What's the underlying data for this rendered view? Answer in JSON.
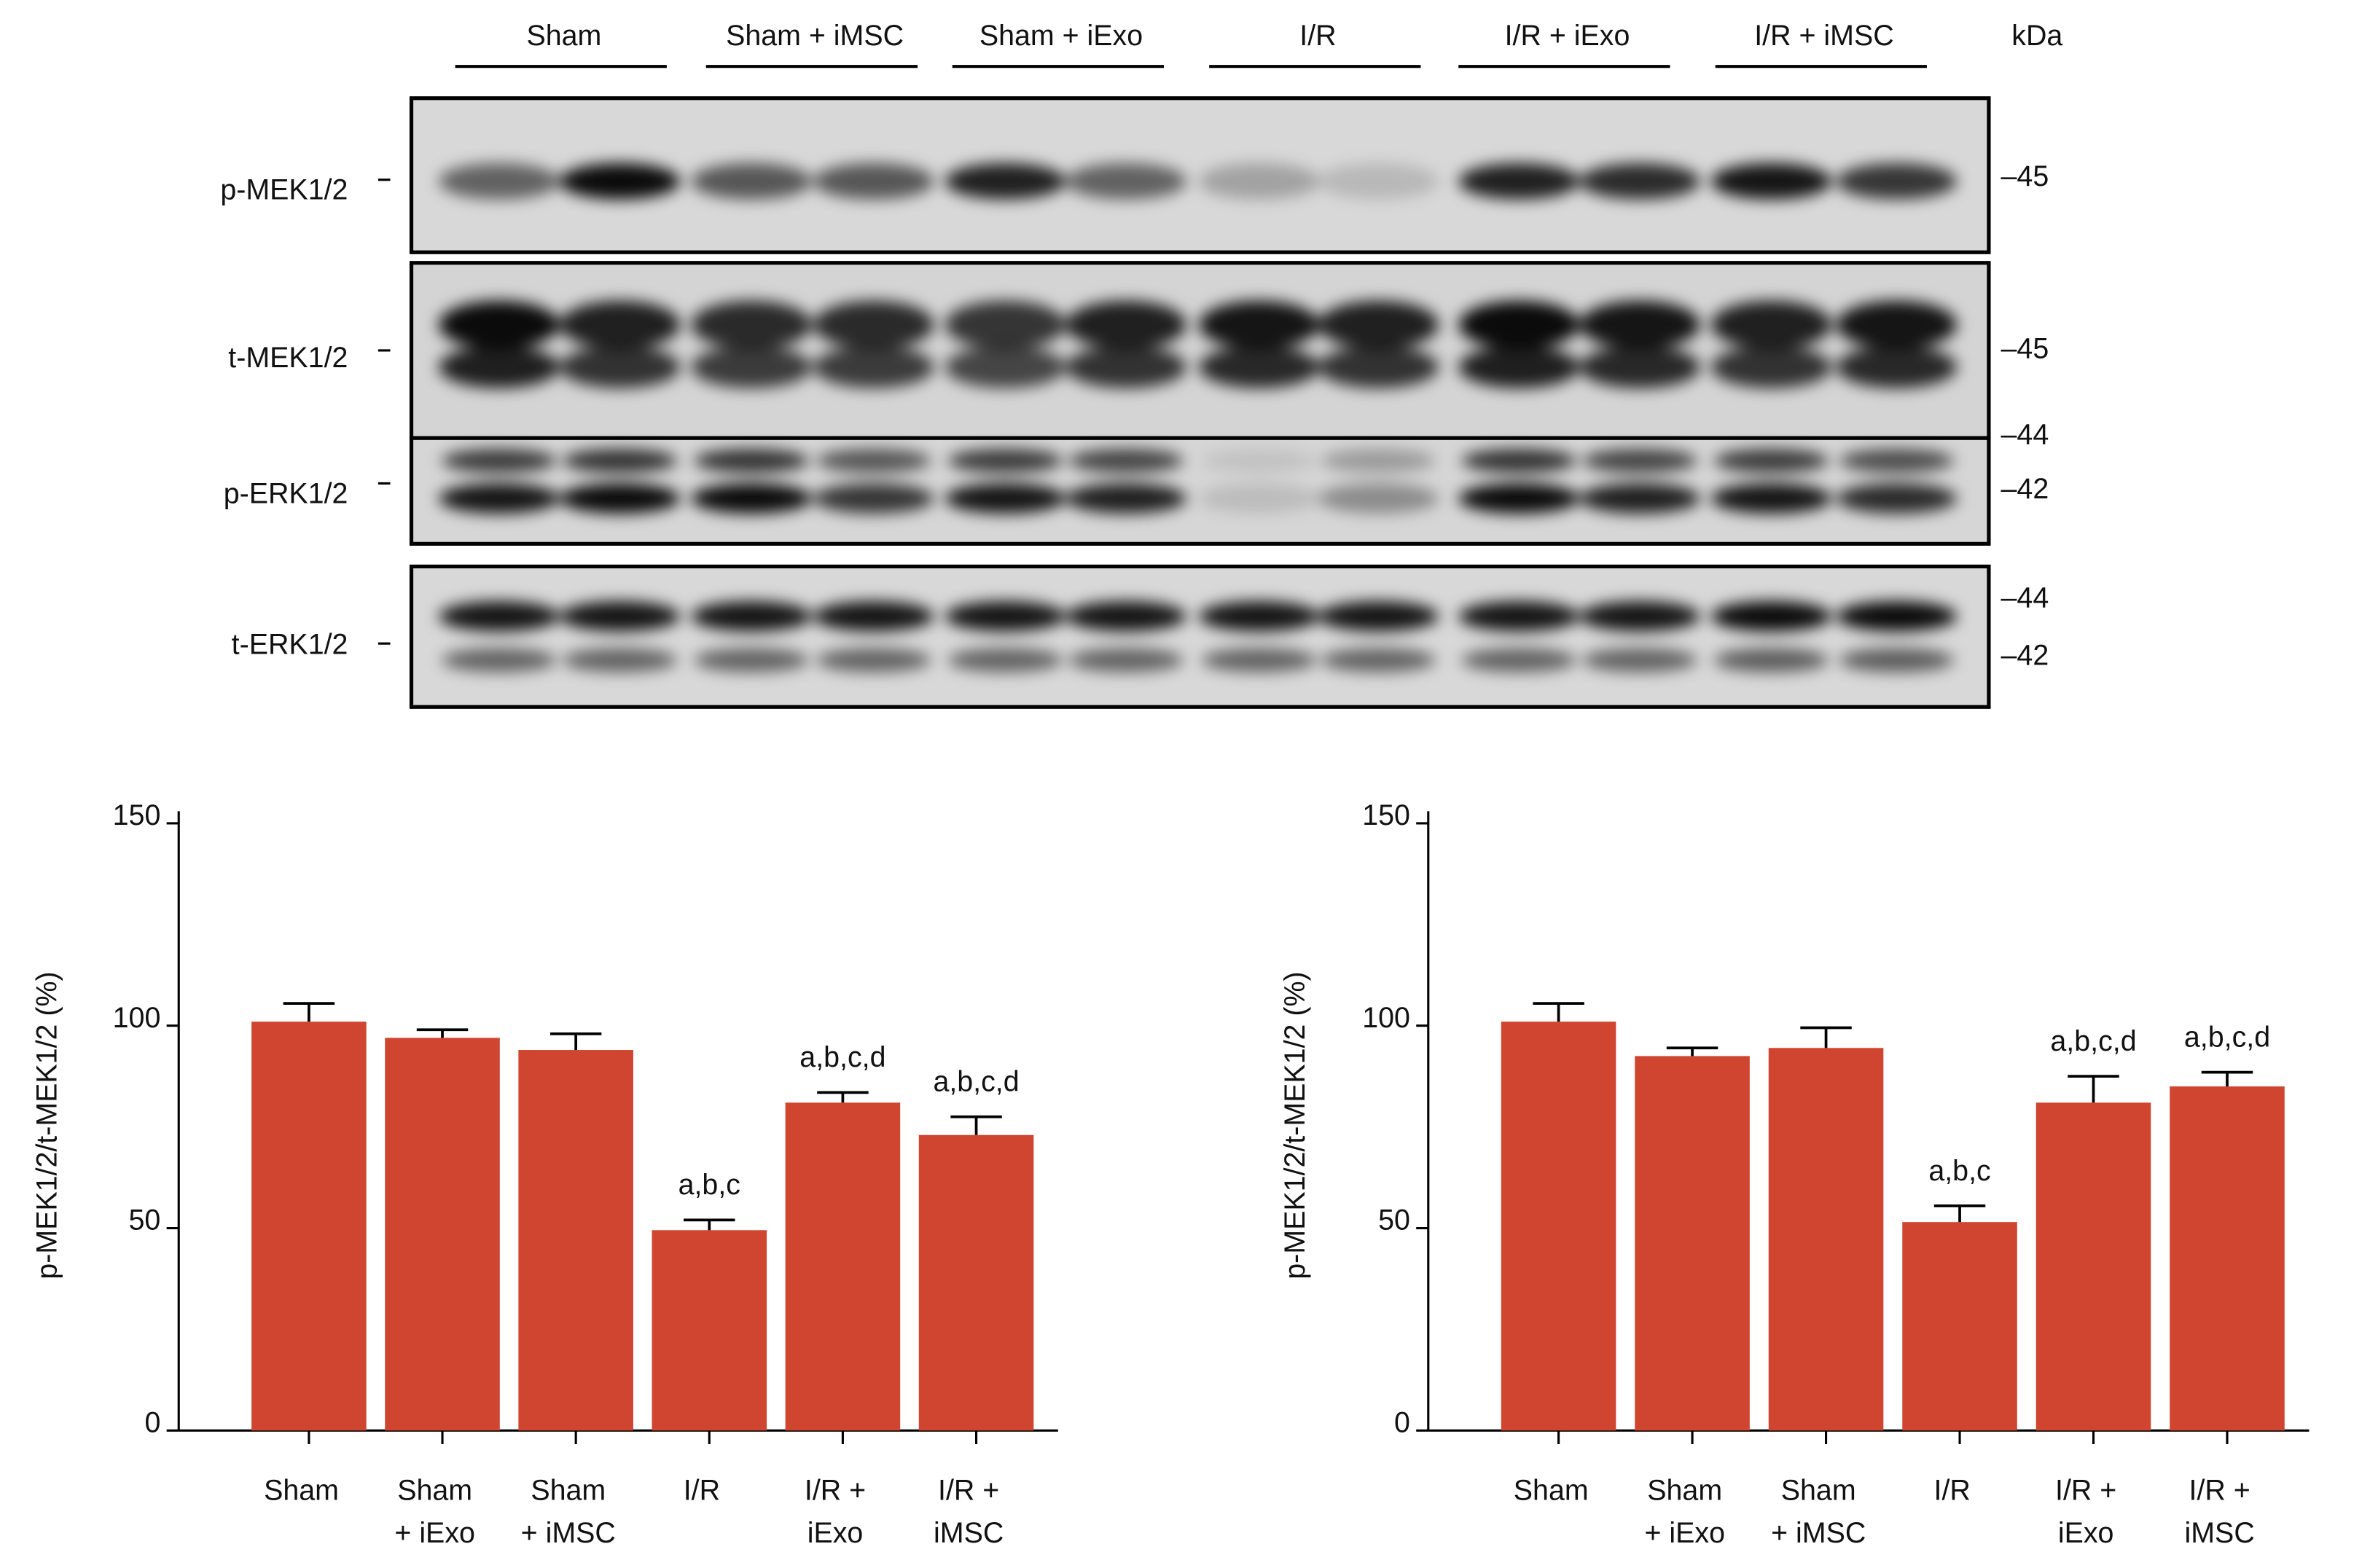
{
  "blot": {
    "groups": [
      "Sham",
      "Sham + iMSC",
      "Sham + iExo",
      "I/R",
      "I/R + iExo",
      "I/R + iMSC"
    ],
    "unit": "kDa",
    "rows": [
      {
        "label": "p-MEK1/2",
        "markers": [
          "–45"
        ]
      },
      {
        "label": "t-MEK1/2",
        "markers": [
          "–45",
          "–44"
        ]
      },
      {
        "label": "p-ERK1/2",
        "markers": [
          "–42"
        ]
      },
      {
        "label": "t-ERK1/2",
        "markers": [
          "–44",
          "–42"
        ]
      }
    ]
  },
  "chart_data": [
    {
      "type": "bar",
      "y_label": "p-MEK1/2/t-MEK1/2 (%)",
      "categories": [
        [
          "Sham"
        ],
        [
          "Sham",
          "+ iExo"
        ],
        [
          "Sham",
          "+ iMSC"
        ],
        [
          "I/R"
        ],
        [
          "I/R +",
          "iExo"
        ],
        [
          "I/R +",
          "iMSC"
        ]
      ],
      "values": [
        101,
        97,
        94,
        49.5,
        81,
        73
      ],
      "errors": [
        4.5,
        2,
        4,
        2.5,
        2.5,
        4.5
      ],
      "value_annotations": [
        null,
        null,
        null,
        "a,b,c",
        "a,b,c,d",
        "a,b,c,d"
      ],
      "color": "#d04530",
      "ylim": [
        0,
        150
      ],
      "yticks": [
        0,
        50,
        100,
        150
      ],
      "grid": false
    },
    {
      "type": "bar",
      "y_label": "p-MEK1/2/t-MEK1/2 (%)",
      "categories": [
        [
          "Sham"
        ],
        [
          "Sham",
          "+ iExo"
        ],
        [
          "Sham",
          "+ iMSC"
        ],
        [
          "I/R"
        ],
        [
          "I/R +",
          "iExo"
        ],
        [
          "I/R +",
          "iMSC"
        ]
      ],
      "values": [
        101,
        92.5,
        94.5,
        51.5,
        81,
        85
      ],
      "errors": [
        4.5,
        2,
        5,
        4,
        6.5,
        3.5
      ],
      "value_annotations": [
        null,
        null,
        null,
        "a,b,c",
        "a,b,c,d",
        "a,b,c,d"
      ],
      "color": "#d04530",
      "ylim": [
        0,
        150
      ],
      "yticks": [
        0,
        50,
        100,
        150
      ],
      "grid": false
    }
  ]
}
